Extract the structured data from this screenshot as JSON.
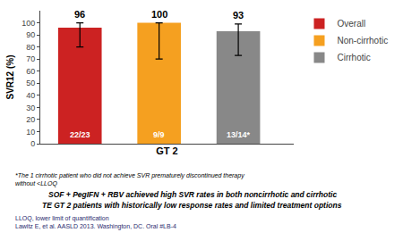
{
  "chart_data": {
    "type": "bar",
    "series": [
      {
        "name": "Overall",
        "color": "#cc2222",
        "values": [
          96
        ],
        "error_low": [
          16
        ],
        "error_high": [
          4
        ],
        "annotations": [
          "22/23"
        ]
      },
      {
        "name": "Non-cirrhotic",
        "color": "#f5a020",
        "values": [
          100
        ],
        "error_low": [
          30
        ],
        "error_high": [
          0
        ],
        "annotations": [
          "9/9"
        ]
      },
      {
        "name": "Cirrhotic",
        "color": "#888888",
        "values": [
          93
        ],
        "error_low": [
          20
        ],
        "error_high": [
          6
        ],
        "annotations": [
          "13/14*"
        ]
      }
    ],
    "xlabel": "GT 2",
    "ylabel": "SVR12 (%)",
    "ylim": [
      0,
      110
    ],
    "yticks": [
      0,
      10,
      20,
      30,
      40,
      50,
      60,
      70,
      80,
      90,
      100
    ],
    "data_labels": true,
    "tick_labels": "y",
    "grid": false,
    "legend": "right",
    "footnotes": [
      "*The 1 cirrhotic patient who did not achieve SVR prematurely discontinued therapy",
      "without <LLOQ"
    ],
    "conclusions": [
      "SOF + PegIFN + RBV achieved high SVR rates in both noncirrhotic and cirrhotic",
      "TE GT 2 patients with historically low response rates and limited treatment options"
    ],
    "references": [
      "LLOQ, lower limit of quantification",
      "Lawitz E, et al. AASLD 2013. Washington, DC. Oral #LB-4"
    ]
  }
}
